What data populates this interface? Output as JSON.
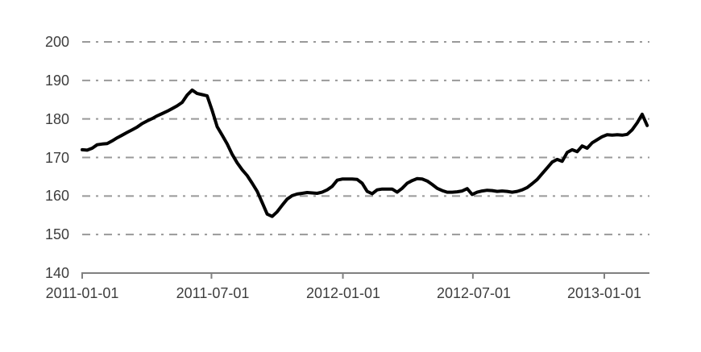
{
  "chart_data": {
    "type": "line",
    "title": "",
    "xlabel": "",
    "ylabel": "",
    "legend": "none",
    "grid_style": "dash-dot",
    "ylim": [
      140,
      200
    ],
    "y_axis": {
      "min": 140,
      "max": 200,
      "step": 10,
      "ticks": [
        "200",
        "190",
        "180",
        "170",
        "160",
        "150",
        "140"
      ]
    },
    "x_axis": {
      "tick_labels": [
        "2011-01-01",
        "2011-07-01",
        "2012-01-01",
        "2012-07-01",
        "2013-01-01"
      ]
    },
    "colors": {
      "line": "#000000",
      "grid": "#999999",
      "axis": "#808080",
      "text": "#3d3d3d",
      "background": "#ffffff"
    },
    "x": [
      "2011-01-01",
      "2011-01-08",
      "2011-01-15",
      "2011-01-22",
      "2011-01-29",
      "2011-02-05",
      "2011-02-12",
      "2011-02-19",
      "2011-02-26",
      "2011-03-05",
      "2011-03-12",
      "2011-03-19",
      "2011-03-26",
      "2011-04-02",
      "2011-04-09",
      "2011-04-16",
      "2011-04-23",
      "2011-04-30",
      "2011-05-07",
      "2011-05-14",
      "2011-05-21",
      "2011-05-28",
      "2011-06-04",
      "2011-06-11",
      "2011-06-18",
      "2011-06-25",
      "2011-07-02",
      "2011-07-09",
      "2011-07-16",
      "2011-07-23",
      "2011-07-30",
      "2011-08-06",
      "2011-08-13",
      "2011-08-20",
      "2011-08-27",
      "2011-09-03",
      "2011-09-10",
      "2011-09-17",
      "2011-09-24",
      "2011-10-01",
      "2011-10-08",
      "2011-10-15",
      "2011-10-22",
      "2011-10-29",
      "2011-11-05",
      "2011-11-12",
      "2011-11-19",
      "2011-11-26",
      "2011-12-03",
      "2011-12-10",
      "2011-12-17",
      "2011-12-24",
      "2011-12-31",
      "2012-01-07",
      "2012-01-14",
      "2012-01-21",
      "2012-01-28",
      "2012-02-04",
      "2012-02-11",
      "2012-02-18",
      "2012-02-25",
      "2012-03-03",
      "2012-03-10",
      "2012-03-17",
      "2012-03-24",
      "2012-03-31",
      "2012-04-07",
      "2012-04-14",
      "2012-04-21",
      "2012-04-28",
      "2012-05-05",
      "2012-05-12",
      "2012-05-19",
      "2012-05-26",
      "2012-06-02",
      "2012-06-09",
      "2012-06-16",
      "2012-06-23",
      "2012-06-30",
      "2012-07-07",
      "2012-07-14",
      "2012-07-21",
      "2012-07-28",
      "2012-08-04",
      "2012-08-11",
      "2012-08-18",
      "2012-08-25",
      "2012-09-01",
      "2012-09-08",
      "2012-09-15",
      "2012-09-22",
      "2012-09-29",
      "2012-10-06",
      "2012-10-13",
      "2012-10-20",
      "2012-10-27",
      "2012-11-03",
      "2012-11-10",
      "2012-11-17",
      "2012-11-24",
      "2012-12-01",
      "2012-12-08",
      "2012-12-15",
      "2012-12-22",
      "2012-12-29",
      "2013-01-05",
      "2013-01-12",
      "2013-01-19",
      "2013-01-26",
      "2013-02-02",
      "2013-02-09",
      "2013-02-16",
      "2013-02-23",
      "2013-03-02"
    ],
    "values": [
      172.0,
      171.9,
      172.4,
      173.3,
      173.5,
      173.6,
      174.3,
      175.1,
      175.8,
      176.5,
      177.2,
      177.9,
      178.8,
      179.5,
      180.1,
      180.8,
      181.4,
      182.0,
      182.7,
      183.4,
      184.3,
      186.2,
      187.5,
      186.6,
      186.3,
      186.0,
      182.2,
      178.0,
      175.8,
      173.5,
      170.8,
      168.6,
      166.8,
      165.3,
      163.3,
      161.2,
      158.3,
      155.3,
      154.7,
      155.9,
      157.6,
      159.2,
      160.1,
      160.5,
      160.7,
      160.9,
      160.8,
      160.7,
      161.0,
      161.6,
      162.5,
      164.1,
      164.4,
      164.4,
      164.4,
      164.3,
      163.3,
      161.2,
      160.6,
      161.6,
      161.8,
      161.8,
      161.8,
      161.0,
      162.0,
      163.3,
      164.0,
      164.5,
      164.4,
      163.9,
      163.0,
      162.0,
      161.4,
      161.0,
      161.0,
      161.1,
      161.3,
      161.9,
      160.4,
      161.0,
      161.3,
      161.5,
      161.4,
      161.2,
      161.3,
      161.2,
      161.0,
      161.2,
      161.6,
      162.2,
      163.2,
      164.3,
      165.8,
      167.3,
      168.8,
      169.5,
      169.0,
      171.3,
      172.0,
      171.5,
      173.0,
      172.4,
      173.8,
      174.6,
      175.4,
      175.9,
      175.8,
      175.9,
      175.8,
      176.0,
      177.2,
      179.0,
      181.2,
      178.3
    ]
  }
}
